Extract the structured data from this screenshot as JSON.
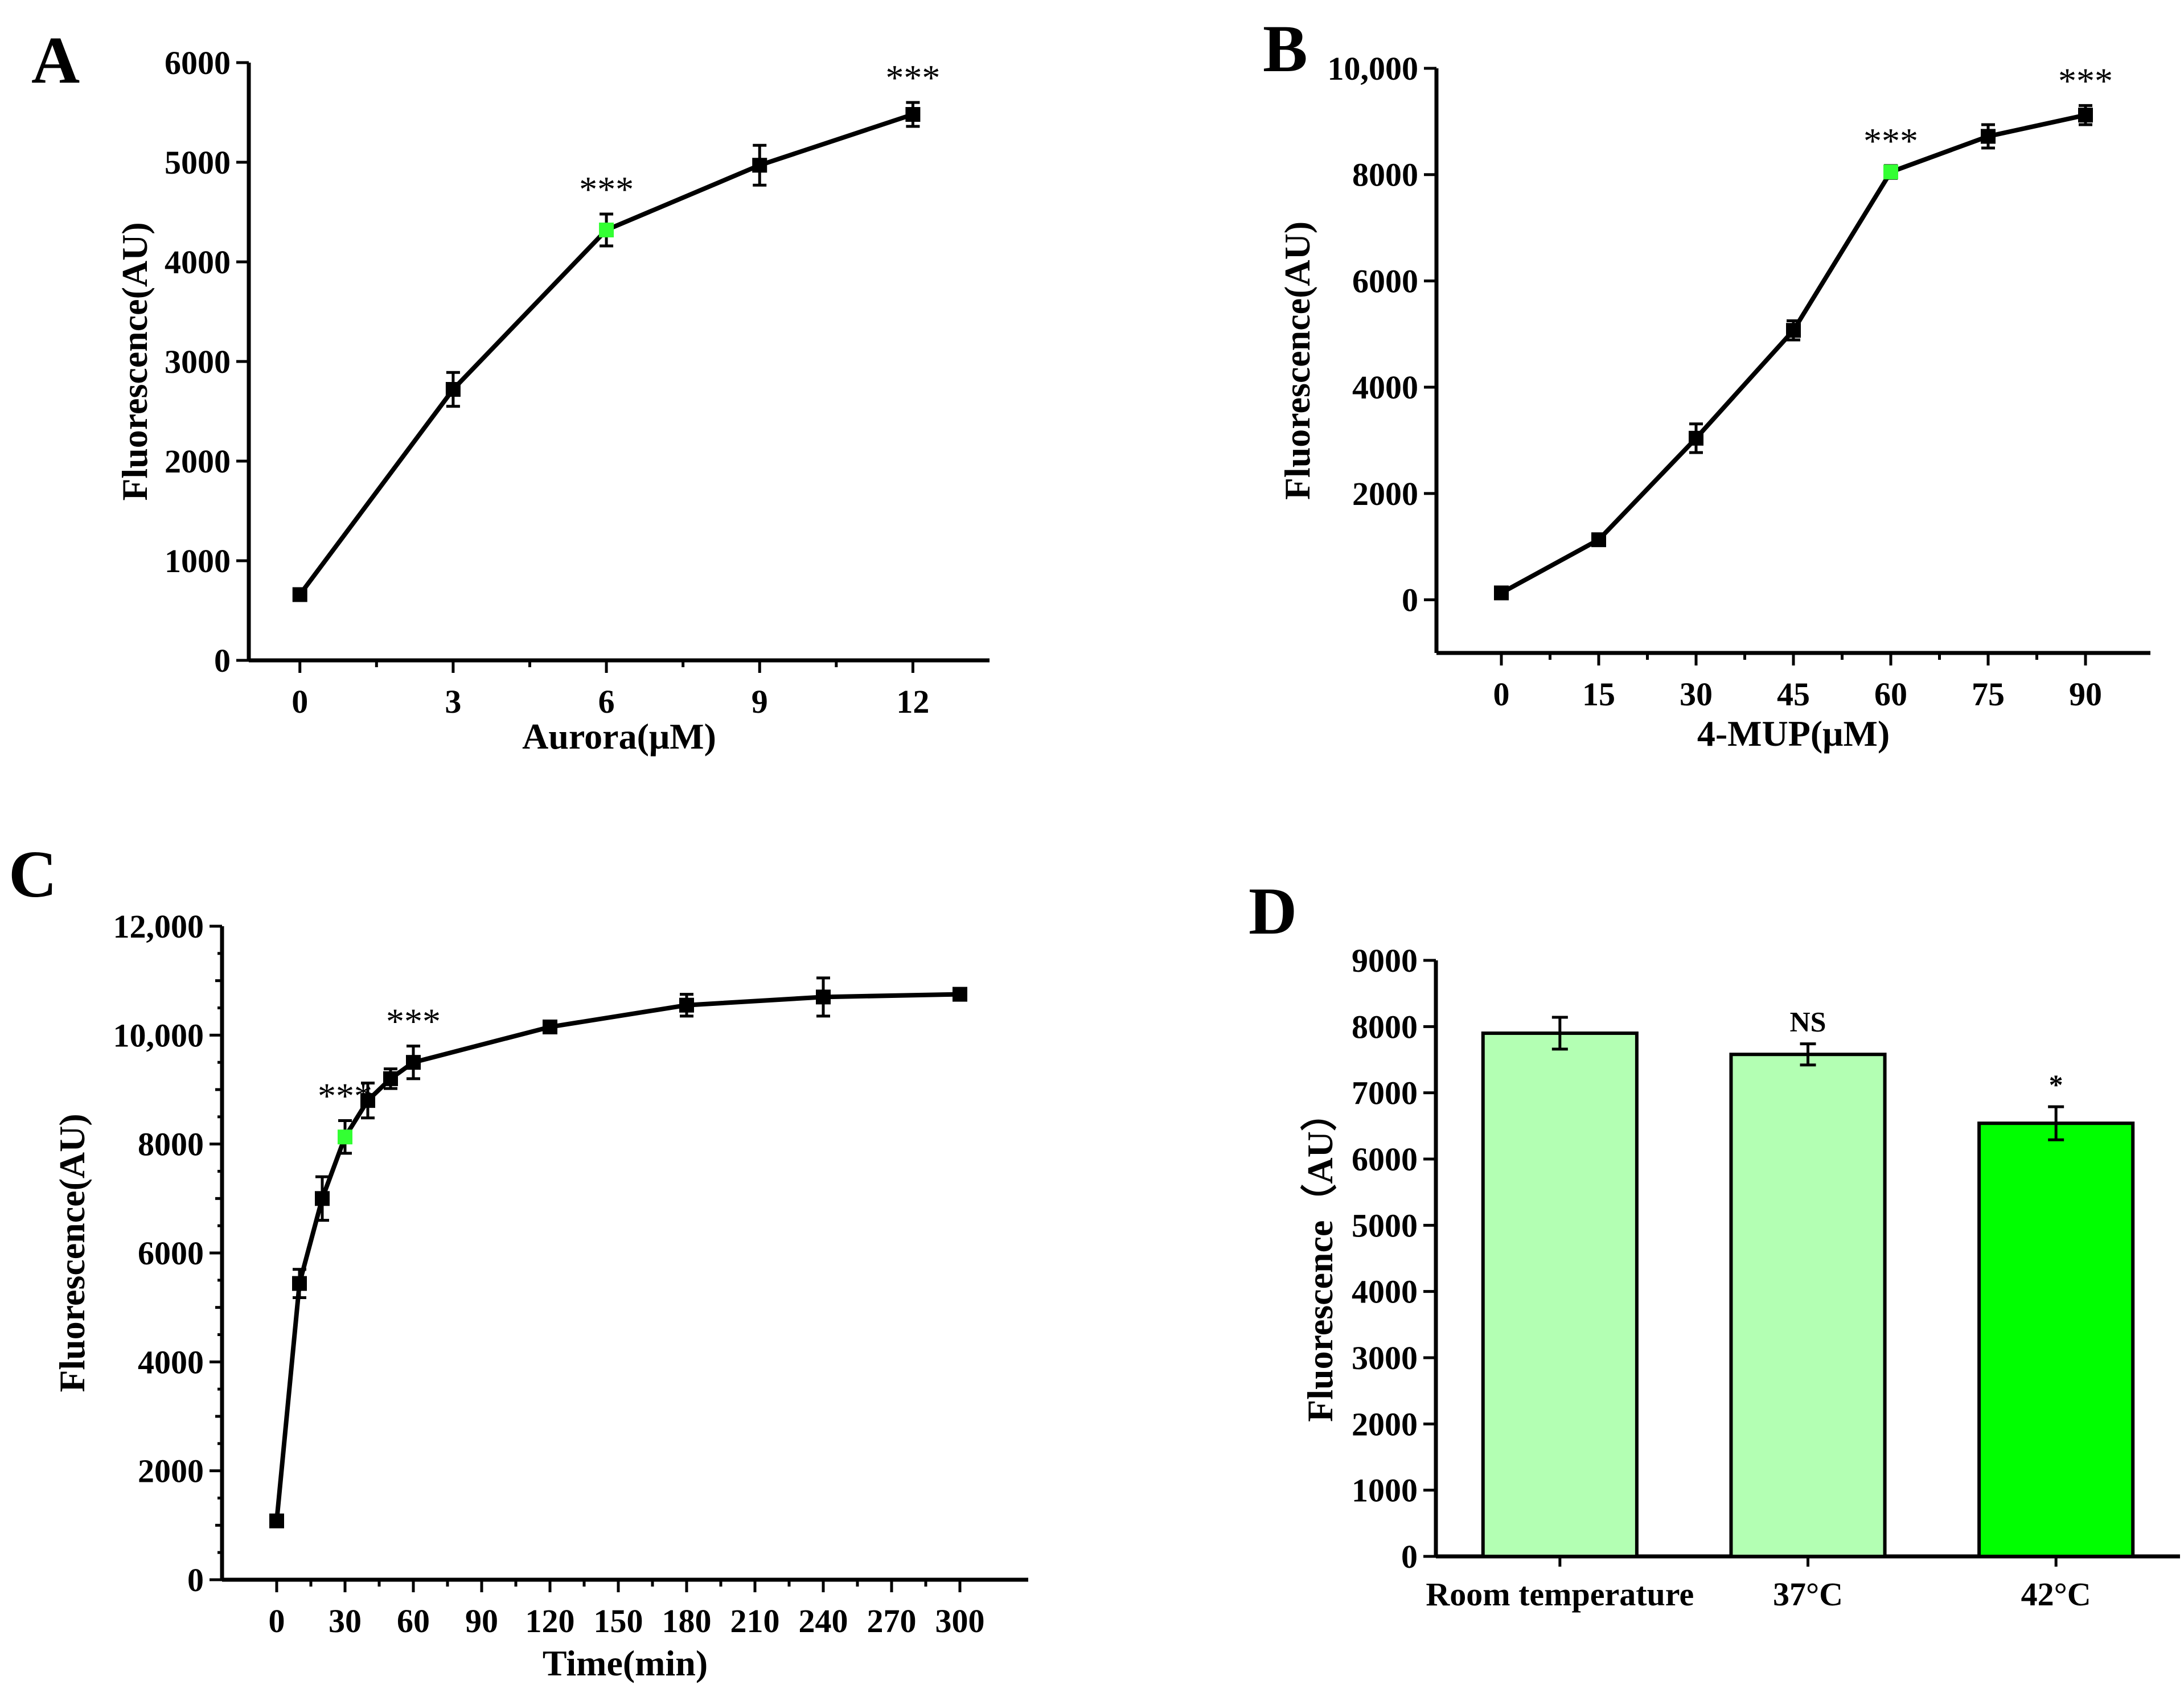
{
  "colors": {
    "marker": "#000000",
    "highlight": "#33ff33",
    "bar_light": "#b3ffb3",
    "bar_strong": "#00ff00"
  },
  "chart_data": [
    {
      "panel": "A",
      "type": "line",
      "xlabel": "Aurora(μM)",
      "ylabel": "Fluorescence(AU)",
      "xlim": [
        -1.0,
        13.5
      ],
      "ylim": [
        0,
        6000
      ],
      "xticks": [
        0,
        3,
        6,
        9,
        12
      ],
      "xtick_labels": [
        "0",
        "3",
        "6",
        "9",
        "12"
      ],
      "yticks": [
        0,
        1000,
        2000,
        3000,
        4000,
        5000,
        6000
      ],
      "ytick_labels": [
        "0",
        "1000",
        "2000",
        "3000",
        "4000",
        "5000",
        "6000"
      ],
      "x": [
        0,
        3,
        6,
        9,
        12
      ],
      "y": [
        660,
        2720,
        4320,
        4970,
        5480
      ],
      "err": [
        40,
        170,
        160,
        200,
        120
      ],
      "highlight_index": 2,
      "annotations": [
        {
          "x": 6,
          "label": "***"
        },
        {
          "x": 12,
          "label": "***"
        }
      ]
    },
    {
      "panel": "B",
      "type": "line",
      "xlabel": "4-MUP(μM)",
      "ylabel": "Fluorescence(AU)",
      "xlim": [
        -10,
        100
      ],
      "ylim": [
        -1000,
        10000
      ],
      "xticks": [
        0,
        15,
        30,
        45,
        60,
        75,
        90
      ],
      "xtick_labels": [
        "0",
        "15",
        "30",
        "45",
        "60",
        "75",
        "90"
      ],
      "yticks": [
        0,
        2000,
        4000,
        6000,
        8000,
        10000
      ],
      "ytick_labels": [
        "0",
        "2000",
        "4000",
        "6000",
        "8000",
        "10,000"
      ],
      "x": [
        0,
        15,
        30,
        45,
        60,
        75,
        90
      ],
      "y": [
        130,
        1130,
        3040,
        5070,
        8050,
        8720,
        9120
      ],
      "err": [
        60,
        100,
        270,
        180,
        120,
        220,
        180
      ],
      "highlight_index": 4,
      "annotations": [
        {
          "x": 60,
          "label": "***"
        },
        {
          "x": 90,
          "label": "***"
        }
      ]
    },
    {
      "panel": "C",
      "type": "line",
      "xlabel": "Time(min)",
      "ylabel": "Fluorescence(AU)",
      "xlim": [
        -24,
        330
      ],
      "ylim": [
        0,
        12000
      ],
      "xticks": [
        0,
        30,
        60,
        90,
        120,
        150,
        180,
        210,
        240,
        270,
        300
      ],
      "xtick_labels": [
        "0",
        "30",
        "60",
        "90",
        "120",
        "150",
        "180",
        "210",
        "240",
        "270",
        "300"
      ],
      "yticks": [
        0,
        2000,
        4000,
        6000,
        8000,
        10000,
        12000
      ],
      "ytick_labels": [
        "0",
        "2000",
        "4000",
        "6000",
        "8000",
        "10,000",
        "12,000"
      ],
      "x": [
        0,
        10,
        20,
        30,
        40,
        50,
        60,
        120,
        180,
        240,
        300
      ],
      "y": [
        1080,
        5440,
        7000,
        8130,
        8800,
        9200,
        9500,
        10150,
        10550,
        10700,
        10750
      ],
      "err": [
        50,
        260,
        400,
        300,
        320,
        180,
        300,
        80,
        200,
        350,
        60
      ],
      "highlight_index": 3,
      "annotations": [
        {
          "x": 30,
          "label": "***"
        },
        {
          "x": 60,
          "label": "***"
        }
      ]
    },
    {
      "panel": "D",
      "type": "bar",
      "xlabel": "",
      "ylabel": "Fluorescence（AU）",
      "ylim": [
        0,
        9000
      ],
      "yticks": [
        0,
        1000,
        2000,
        3000,
        4000,
        5000,
        6000,
        7000,
        8000,
        9000
      ],
      "ytick_labels": [
        "0",
        "1000",
        "2000",
        "3000",
        "4000",
        "5000",
        "6000",
        "7000",
        "8000",
        "9000"
      ],
      "categories": [
        "Room temperature",
        "37°C",
        "42°C"
      ],
      "values": [
        7900,
        7580,
        6540
      ],
      "err": [
        240,
        160,
        250
      ],
      "bar_color_keys": [
        "bar_light",
        "bar_light",
        "bar_strong"
      ],
      "annotations": [
        "",
        "NS",
        "*"
      ]
    }
  ]
}
